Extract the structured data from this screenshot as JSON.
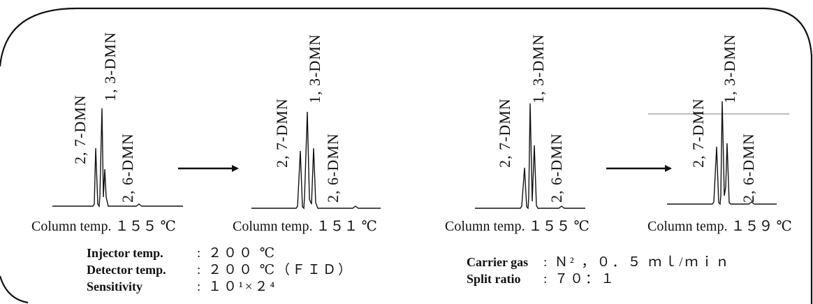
{
  "panels": [
    {
      "labels": {
        "dmn27": "2, 7-DMN",
        "dmn13": "1, 3-DMN",
        "dmn26": "2, 6-DMN"
      },
      "caption": "Column temp. １５５ ℃"
    },
    {
      "labels": {
        "dmn27": "2, 7-DMN",
        "dmn13": "1, 3-DMN",
        "dmn26": "2, 6-DMN"
      },
      "caption": "Column temp. １５１ ℃"
    },
    {
      "labels": {
        "dmn27": "2, 7-DMN",
        "dmn13": "1, 3-DMN",
        "dmn26": "2, 6-DMN"
      },
      "caption": "Column temp. １５５ ℃"
    },
    {
      "labels": {
        "dmn27": "2, 7-DMN",
        "dmn13": "1, 3-DMN",
        "dmn26": "2, 6-DMN"
      },
      "caption": "Column temp. １５９ ℃"
    }
  ],
  "conditions_left": [
    {
      "label": "Injector temp.",
      "value": ": ２００ ℃"
    },
    {
      "label": "Detector temp.",
      "value": ": ２００ ℃（ＦＩＤ）"
    },
    {
      "label": "Sensitivity",
      "value": ": １０¹×２⁴"
    }
  ],
  "conditions_right": [
    {
      "label": "Carrier gas",
      "value": ": Ｎ² ，０．５ ｍｌ/ｍｉｎ"
    },
    {
      "label": "Split ratio",
      "value": ": ７０：１"
    }
  ],
  "colors": {
    "ink": "#111111",
    "frame": "#111111",
    "ref_line": "#999999"
  }
}
